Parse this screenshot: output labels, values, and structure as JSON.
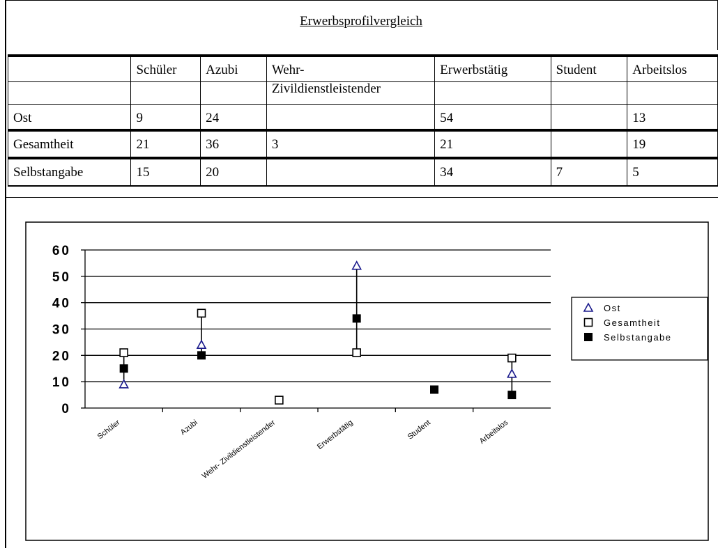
{
  "title": "Erwerbsprofilvergleich",
  "table": {
    "headers": [
      "",
      "Schüler",
      "Azubi",
      "Wehr-",
      "Erwerbstätig",
      "Student",
      "Arbeitslos"
    ],
    "header_line2": "Zivildienstleistender",
    "rows": [
      {
        "label": "Ost",
        "cells": [
          "9",
          "24",
          "",
          "54",
          "",
          "13"
        ]
      },
      {
        "label": "Gesamtheit",
        "cells": [
          "21",
          "36",
          "3",
          "21",
          "",
          "19"
        ]
      },
      {
        "label": "Selbstangabe",
        "cells": [
          "15",
          "20",
          "",
          "34",
          "7",
          "5"
        ]
      }
    ]
  },
  "chart_data": {
    "type": "scatter",
    "categories": [
      "Schüler",
      "Azubi",
      "Wehr- Zivildienstleistender",
      "Erwerbstätig",
      "Student",
      "Arbeitslos"
    ],
    "series": [
      {
        "name": "Ost",
        "values": [
          9,
          24,
          null,
          54,
          null,
          13
        ],
        "marker": "open-triangle",
        "color": "#1a1a8c"
      },
      {
        "name": "Gesamtheit",
        "values": [
          21,
          36,
          3,
          21,
          null,
          19
        ],
        "marker": "open-square",
        "color": "#000000"
      },
      {
        "name": "Selbstangabe",
        "values": [
          15,
          20,
          null,
          34,
          7,
          5
        ],
        "marker": "filled-square",
        "color": "#000000"
      }
    ],
    "ylim": [
      0,
      60
    ],
    "yticks": [
      0,
      10,
      20,
      30,
      40,
      50,
      60
    ],
    "grid": true,
    "legend": "right",
    "range_lines": true
  }
}
